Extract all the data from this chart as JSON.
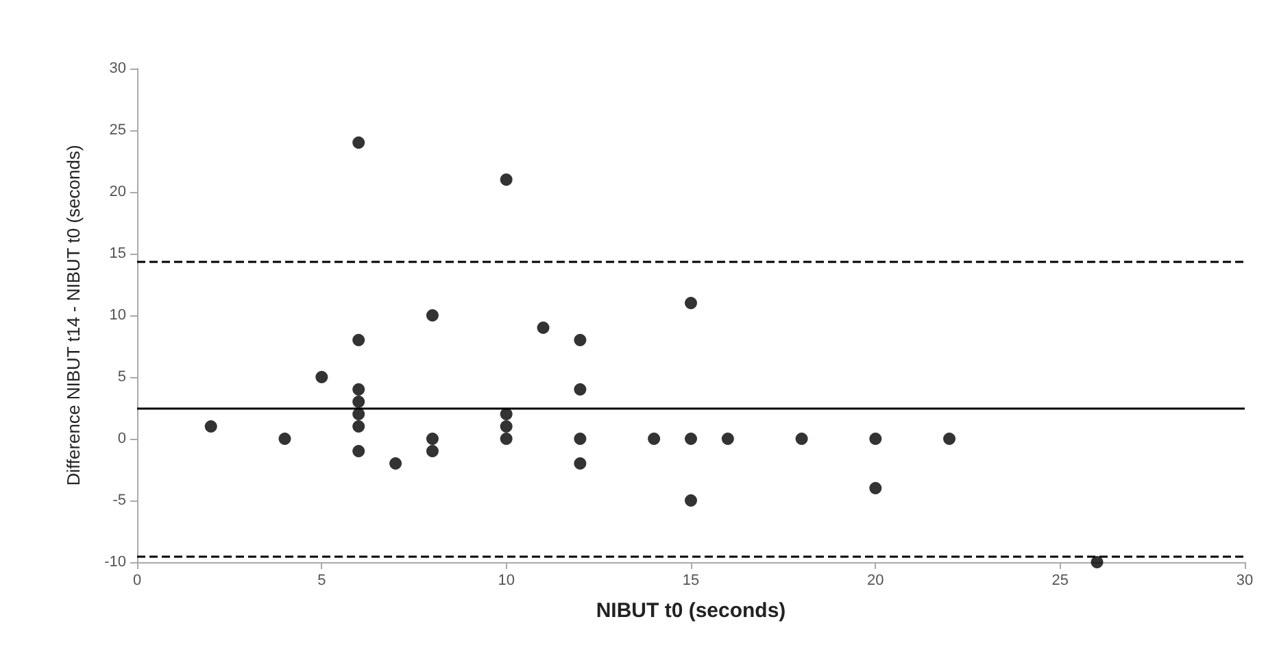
{
  "chart_data": {
    "type": "scatter",
    "xlabel": "NIBUT t0 (seconds)",
    "ylabel": "Difference NIBUT t14 - NIBUT t0 (seconds)",
    "x": [
      2,
      4,
      5,
      6,
      6,
      6,
      6,
      6,
      6,
      6,
      7,
      8,
      8,
      8,
      10,
      10,
      10,
      10,
      11,
      12,
      12,
      12,
      12,
      14,
      15,
      15,
      15,
      16,
      18,
      20,
      20,
      22,
      26
    ],
    "series": [
      {
        "color": "#000000",
        "values": [
          1,
          0,
          5,
          24,
          8,
          4,
          3,
          2,
          1,
          -1,
          -2,
          10,
          0,
          -1,
          21,
          2,
          1,
          0,
          9,
          8,
          4,
          0,
          -2,
          0,
          11,
          0,
          -5,
          0,
          0,
          0,
          -4,
          0,
          -10
        ]
      }
    ],
    "xlim": [
      0,
      30
    ],
    "xticks": [
      0,
      5,
      10,
      15,
      20,
      25,
      30
    ],
    "ylim": [
      -10,
      30
    ],
    "yticks": [
      -10,
      -5,
      0,
      5,
      10,
      15,
      20,
      25,
      30
    ],
    "ref_lines": [
      {
        "axis": "y",
        "value": 14.4,
        "color": "#000000",
        "line_style": "dashed"
      },
      {
        "axis": "y",
        "value": 2.5,
        "color": "#000000",
        "line_style": "solid"
      },
      {
        "axis": "y",
        "value": -9.5,
        "color": "#000000",
        "line_style": "dashed"
      }
    ],
    "grid": false,
    "marker": "circle"
  }
}
